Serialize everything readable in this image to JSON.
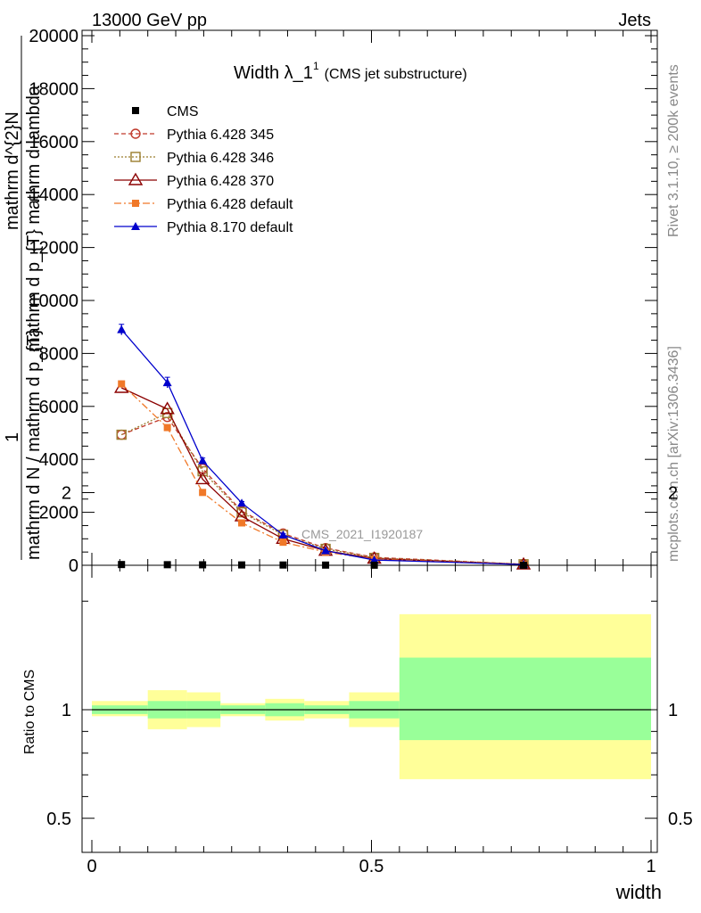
{
  "header": {
    "left": "13000 GeV pp",
    "right": "Jets"
  },
  "side_labels": {
    "rivet": "Rivet 3.1.10, ≥ 200k events",
    "mcplots": "mcplots.cern.ch [arXiv:1306.3436]"
  },
  "colors": {
    "cms": "#000000",
    "p345": "#c0392b",
    "p346": "#9a7d2e",
    "p370": "#8b0000",
    "p6def": "#f07828",
    "p8def": "#0000cc",
    "band_inner": "#99ff99",
    "band_outer": "#ffff99"
  },
  "chart_data": [
    {
      "type": "line",
      "title": "Width λ_1",
      "title_sup": "1",
      "title_suffix": "(CMS jet substructure)",
      "watermark": "CMS_2021_I1920187",
      "ylabel_parts": [
        "mathrm d^{2}N",
        "mathrm d p_{T} mathrm d lambda",
        "1",
        "mathrm d N / mathrm d p_{T}"
      ],
      "xlim": [
        0,
        1
      ],
      "ylim": [
        0,
        20000
      ],
      "yticks": [
        0,
        2000,
        4000,
        6000,
        8000,
        10000,
        12000,
        14000,
        16000,
        18000,
        20000
      ],
      "ytick_labels": [
        "0",
        "2000",
        "4000",
        "6000",
        "8000",
        "10000",
        "12000",
        "14000",
        "16000",
        "18000",
        "20000"
      ],
      "bins": [
        [
          0,
          0.1
        ],
        [
          0.1,
          0.17
        ],
        [
          0.17,
          0.23
        ],
        [
          0.23,
          0.31
        ],
        [
          0.31,
          0.38
        ],
        [
          0.38,
          0.46
        ],
        [
          0.46,
          0.55
        ],
        [
          0.55,
          1.0
        ]
      ],
      "x": [
        0.053,
        0.135,
        0.198,
        0.268,
        0.342,
        0.418,
        0.505,
        0.772
      ],
      "series": [
        {
          "name": "CMS",
          "key": "cms",
          "marker": "square",
          "dash": "",
          "values": [
            28,
            22,
            18,
            13,
            10,
            7,
            4,
            2
          ]
        },
        {
          "name": "Pythia 6.428 345",
          "key": "p345",
          "marker": "circle-open",
          "dash": "5,3",
          "values": [
            4930,
            5600,
            3650,
            2050,
            1200,
            650,
            300,
            40
          ]
        },
        {
          "name": "Pythia 6.428 346",
          "key": "p346",
          "marker": "square-open",
          "dash": "2,2",
          "values": [
            4930,
            5750,
            3550,
            2000,
            1150,
            620,
            280,
            40
          ]
        },
        {
          "name": "Pythia 6.428 370",
          "key": "p370",
          "marker": "triangle-open",
          "dash": "",
          "values": [
            6700,
            5900,
            3250,
            1850,
            1000,
            550,
            250,
            30
          ]
        },
        {
          "name": "Pythia 6.428 default",
          "key": "p6def",
          "marker": "square-filled",
          "dash": "8,3,2,3",
          "values": [
            6850,
            5200,
            2750,
            1600,
            870,
            500,
            230,
            30
          ]
        },
        {
          "name": "Pythia 8.170 default",
          "key": "p8def",
          "marker": "triangle-filled",
          "dash": "",
          "values": [
            8900,
            6900,
            3950,
            2350,
            1150,
            550,
            200,
            30
          ],
          "errors": [
            200,
            200,
            100,
            60,
            40,
            20,
            10,
            5
          ]
        }
      ]
    },
    {
      "type": "area",
      "ylabel": "Ratio to CMS",
      "xlabel": "width",
      "xlim": [
        0,
        1
      ],
      "ylim": [
        0.35,
        2.25
      ],
      "yticks": [
        0.5,
        1,
        2
      ],
      "ytick_labels": [
        "0.5",
        "1",
        "2"
      ],
      "xticks": [
        0,
        0.5,
        1
      ],
      "xtick_labels": [
        "0",
        "0.5",
        "1"
      ],
      "bins": [
        [
          0,
          0.1
        ],
        [
          0.1,
          0.17
        ],
        [
          0.17,
          0.23
        ],
        [
          0.23,
          0.31
        ],
        [
          0.31,
          0.38
        ],
        [
          0.38,
          0.46
        ],
        [
          0.46,
          0.55
        ],
        [
          0.55,
          1.0
        ]
      ],
      "inner_band": [
        [
          0.98,
          1.02
        ],
        [
          0.96,
          1.04
        ],
        [
          0.96,
          1.04
        ],
        [
          0.98,
          1.02
        ],
        [
          0.97,
          1.03
        ],
        [
          0.98,
          1.02
        ],
        [
          0.96,
          1.04
        ],
        [
          0.86,
          1.24
        ]
      ],
      "outer_band": [
        [
          0.97,
          1.04
        ],
        [
          0.91,
          1.09
        ],
        [
          0.92,
          1.08
        ],
        [
          0.97,
          1.03
        ],
        [
          0.95,
          1.05
        ],
        [
          0.96,
          1.04
        ],
        [
          0.92,
          1.08
        ],
        [
          0.68,
          1.44
        ]
      ]
    }
  ]
}
